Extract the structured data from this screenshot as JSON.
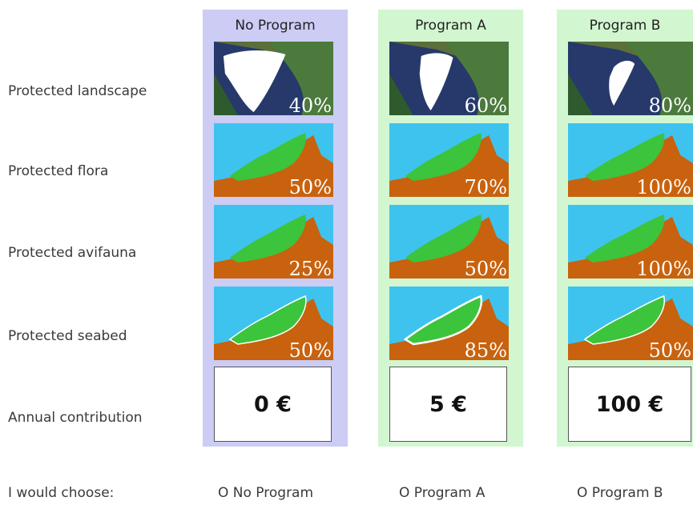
{
  "rows": {
    "landscape": "Protected landscape",
    "flora": "Protected flora",
    "avifauna": "Protected avifauna",
    "seabed": "Protected seabed",
    "contribution": "Annual contribution"
  },
  "columns": [
    {
      "title": "No Program",
      "landscape": "40%",
      "flora": "50%",
      "avifauna": "25%",
      "seabed": "50%",
      "contribution": "0 €",
      "option": "O No Program"
    },
    {
      "title": "Program A",
      "landscape": "60%",
      "flora": "70%",
      "avifauna": "50%",
      "seabed": "85%",
      "contribution": "5 €",
      "option": "O Program A"
    },
    {
      "title": "Program B",
      "landscape": "80%",
      "flora": "100%",
      "avifauna": "100%",
      "seabed": "50%",
      "contribution": "100 €",
      "option": "O Program B"
    }
  ],
  "choice_label": "I would choose:",
  "colors": {
    "no_program_bg": "#ccccf5",
    "program_bg": "#d2f6d0",
    "sea": "#3ec3ee",
    "land": "#c8620e",
    "protected": "#3cc43c",
    "photo_sky": "#2a3a6a",
    "photo_land": "#4a7a3a"
  },
  "icons": [
    "landscape-photo-icon",
    "island-map-icon"
  ]
}
